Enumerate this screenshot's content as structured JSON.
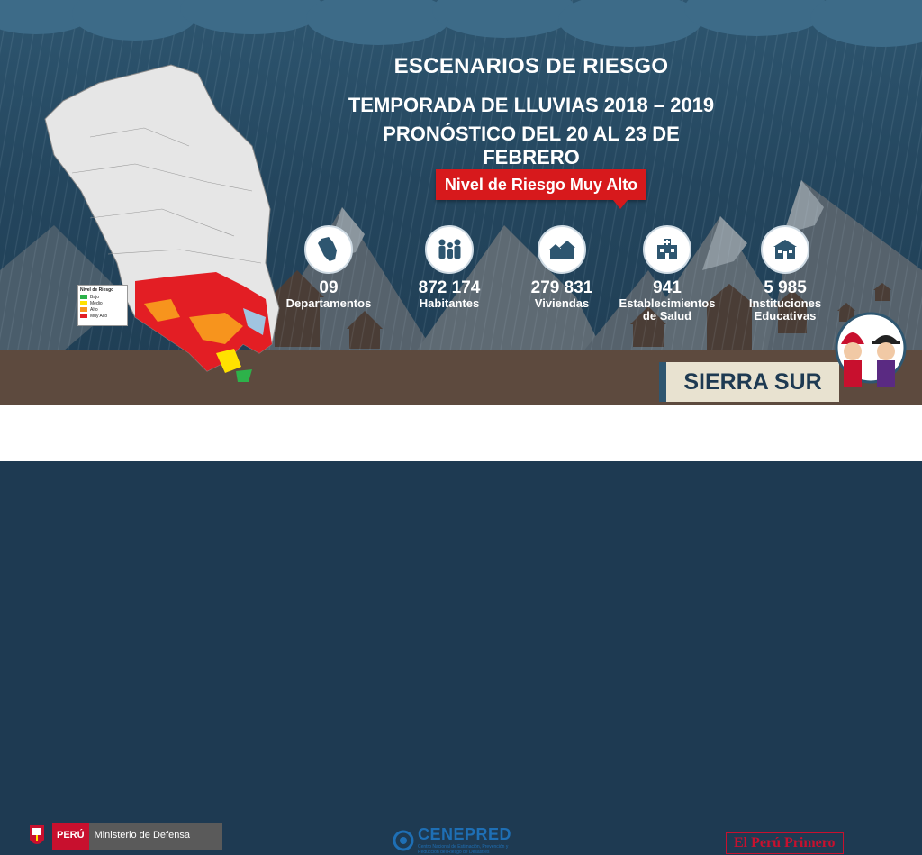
{
  "header": {
    "title": "ESCENARIOS DE RIESGO",
    "subtitle1": "TEMPORADA DE LLUVIAS 2018 – 2019",
    "subtitle2": "PRONÓSTICO DEL 20 AL 23 DE FEBRERO"
  },
  "risk_badge": "Nivel de Riesgo Muy Alto",
  "stats": [
    {
      "icon": "peru-map-icon",
      "value": "09",
      "label1": "Departamentos",
      "label2": ""
    },
    {
      "icon": "people-icon",
      "value": "872 174",
      "label1": "Habitantes",
      "label2": ""
    },
    {
      "icon": "houses-icon",
      "value": "279 831",
      "label1": "Viviendas",
      "label2": ""
    },
    {
      "icon": "hospital-icon",
      "value": "941",
      "label1": "Establecimientos",
      "label2": "de Salud"
    },
    {
      "icon": "school-icon",
      "value": "5 985",
      "label1": "Instituciones",
      "label2": "Educativas"
    }
  ],
  "map_legend": {
    "title": "Nivel de Riesgo",
    "items": [
      {
        "label": "Bajo",
        "color": "#2db24a"
      },
      {
        "label": "Medio",
        "color": "#ffe100"
      },
      {
        "label": "Alto",
        "color": "#f7941d"
      },
      {
        "label": "Muy Alto",
        "color": "#e31e24"
      }
    ]
  },
  "region": "SIERRA SUR",
  "footer": {
    "peru": "PERÚ",
    "ministry": "Ministerio de Defensa",
    "cenepred_name": "CENEPRED",
    "cenepred_sub1": "Centro Nacional de Estimación, Prevención y",
    "cenepred_sub2": "Reducción del Riesgo de Desastres",
    "slogan": "El Perú Primero"
  },
  "colors": {
    "risk_red": "#d7191c",
    "sky": "#24465e",
    "ground": "#5d4a3e"
  }
}
